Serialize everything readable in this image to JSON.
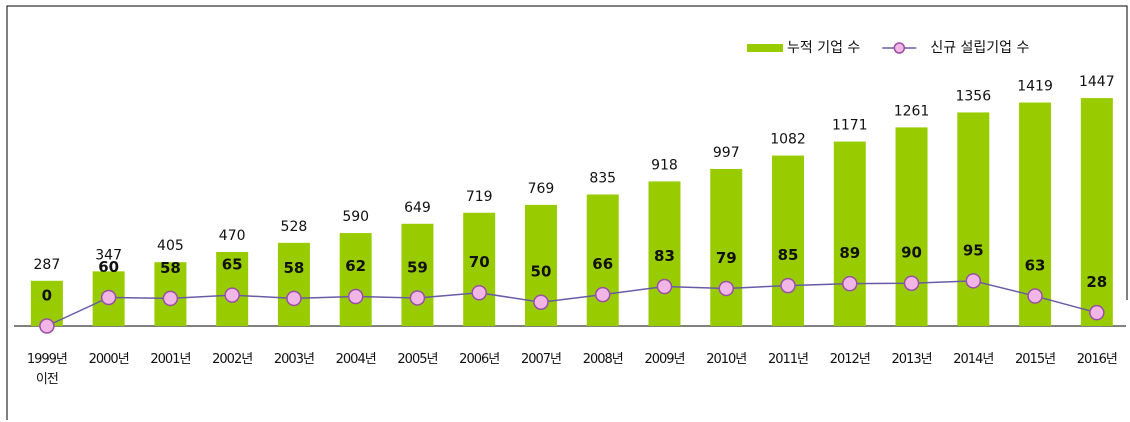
{
  "chart_data": {
    "type": "bar-line",
    "categories": [
      "1999년\n이전",
      "2000년",
      "2001년",
      "2002년",
      "2003년",
      "2004년",
      "2005년",
      "2006년",
      "2007년",
      "2008년",
      "2009년",
      "2010년",
      "2011년",
      "2012년",
      "2013년",
      "2014년",
      "2015년",
      "2016년"
    ],
    "series": [
      {
        "name": "누적 기업 수",
        "type": "bar",
        "color": "#99cc00",
        "values": [
          287,
          347,
          405,
          470,
          528,
          590,
          649,
          719,
          769,
          835,
          918,
          997,
          1082,
          1171,
          1261,
          1356,
          1419,
          1447
        ]
      },
      {
        "name": "신규 설립기업 수",
        "type": "line",
        "axis": "y2",
        "color": "#6a5aa8",
        "marker_color": "#f2b6e6",
        "values": [
          0,
          60,
          58,
          65,
          58,
          62,
          59,
          70,
          50,
          66,
          83,
          79,
          85,
          89,
          90,
          95,
          63,
          28
        ]
      }
    ],
    "ylim": [
      0,
      1600
    ],
    "y2lim": [
      0,
      530
    ],
    "legend": "top-right"
  }
}
